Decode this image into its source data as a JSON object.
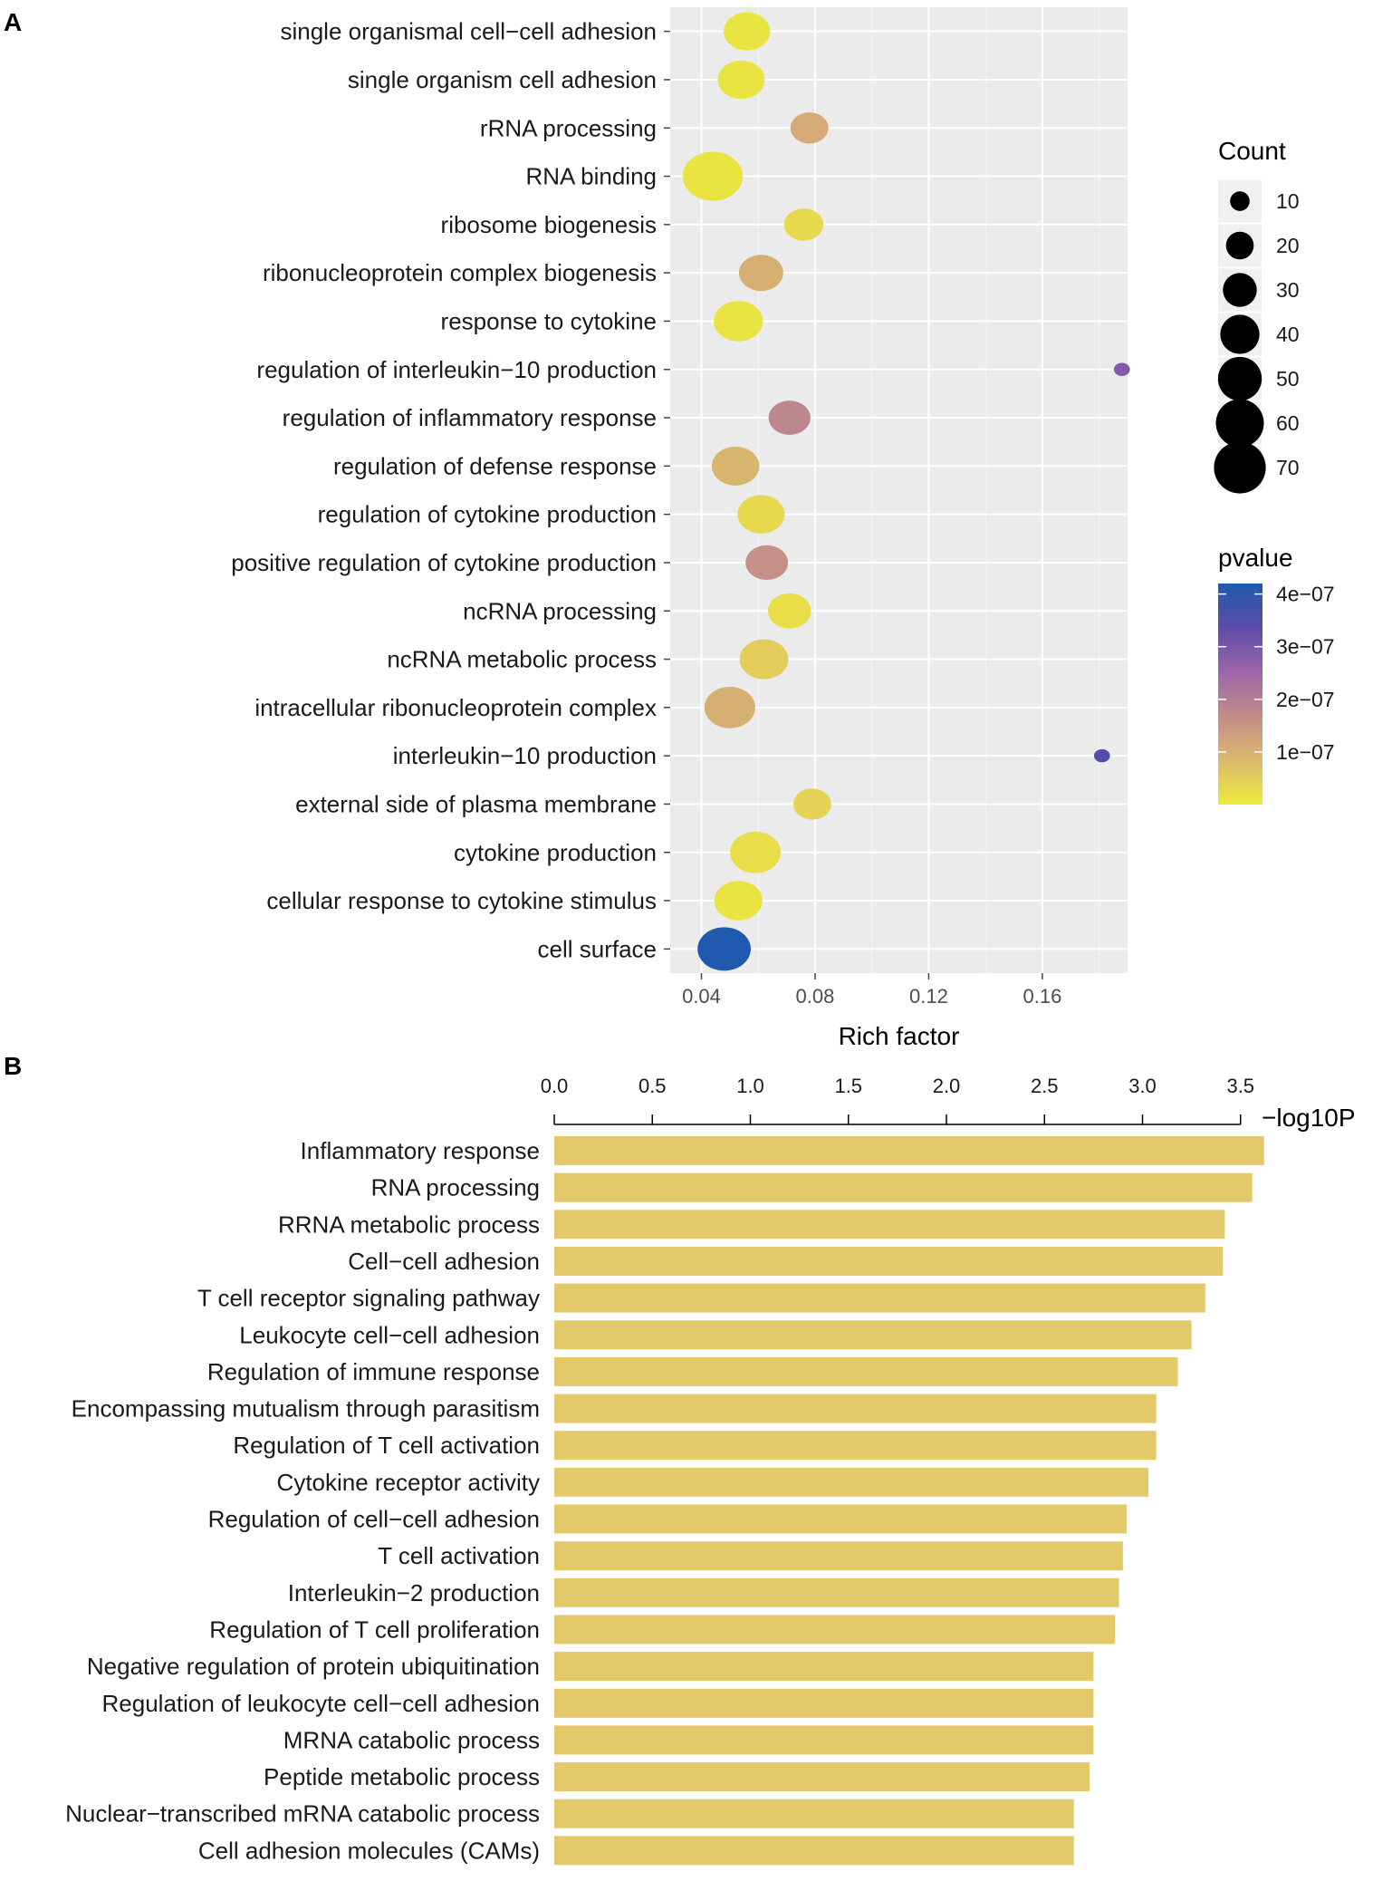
{
  "panels": {
    "a_label": "A",
    "b_label": "B"
  },
  "chart_data": [
    {
      "panel": "A",
      "type": "scatter",
      "subtype": "bubble",
      "title": "",
      "xlabel": "Rich factor",
      "ylabel": "",
      "xlim": [
        0.029,
        0.19
      ],
      "xticks": [
        0.04,
        0.08,
        0.12,
        0.16
      ],
      "xtick_labels": [
        "0.04",
        "0.08",
        "0.12",
        "0.16"
      ],
      "grid": true,
      "categories": [
        "single organismal cell−cell adhesion",
        "single organism cell adhesion",
        "rRNA processing",
        "RNA binding",
        "ribosome biogenesis",
        "ribonucleoprotein complex biogenesis",
        "response to cytokine",
        "regulation of interleukin−10 production",
        "regulation of inflammatory response",
        "regulation of defense response",
        "regulation of cytokine production",
        "positive regulation of cytokine production",
        "ncRNA processing",
        "ncRNA metabolic process",
        "intracellular ribonucleoprotein complex",
        "interleukin−10 production",
        "external side of plasma membrane",
        "cytokine production",
        "cellular response to cytokine stimulus",
        "cell surface"
      ],
      "points": [
        {
          "rich_factor": 0.056,
          "count": 42,
          "pvalue": 1e-08
        },
        {
          "rich_factor": 0.054,
          "count": 43,
          "pvalue": 1e-08
        },
        {
          "rich_factor": 0.078,
          "count": 28,
          "pvalue": 1.1e-07
        },
        {
          "rich_factor": 0.044,
          "count": 70,
          "pvalue": 1e-08
        },
        {
          "rich_factor": 0.076,
          "count": 30,
          "pvalue": 3e-08
        },
        {
          "rich_factor": 0.061,
          "count": 38,
          "pvalue": 1e-07
        },
        {
          "rich_factor": 0.053,
          "count": 47,
          "pvalue": 1e-08
        },
        {
          "rich_factor": 0.188,
          "count": 5,
          "pvalue": 2.9e-07
        },
        {
          "rich_factor": 0.071,
          "count": 34,
          "pvalue": 1.8e-07
        },
        {
          "rich_factor": 0.052,
          "count": 44,
          "pvalue": 9e-08
        },
        {
          "rich_factor": 0.061,
          "count": 43,
          "pvalue": 3e-08
        },
        {
          "rich_factor": 0.063,
          "count": 35,
          "pvalue": 1.6e-07
        },
        {
          "rich_factor": 0.071,
          "count": 36,
          "pvalue": 2e-08
        },
        {
          "rich_factor": 0.062,
          "count": 46,
          "pvalue": 5e-08
        },
        {
          "rich_factor": 0.05,
          "count": 50,
          "pvalue": 1e-07
        },
        {
          "rich_factor": 0.181,
          "count": 5,
          "pvalue": 3.5e-07
        },
        {
          "rich_factor": 0.079,
          "count": 28,
          "pvalue": 4e-08
        },
        {
          "rich_factor": 0.059,
          "count": 50,
          "pvalue": 2e-08
        },
        {
          "rich_factor": 0.053,
          "count": 45,
          "pvalue": 1e-08
        },
        {
          "rich_factor": 0.048,
          "count": 55,
          "pvalue": 4.2e-07
        }
      ],
      "size_legend": {
        "title": "Count",
        "values": [
          10,
          20,
          30,
          40,
          50,
          60,
          70
        ],
        "labels": [
          "10",
          "20",
          "30",
          "40",
          "50",
          "60",
          "70"
        ]
      },
      "color_legend": {
        "title": "pvalue",
        "range": [
          0,
          4.2e-07
        ],
        "ticks": [
          4e-07,
          3e-07,
          2e-07,
          1e-07
        ],
        "tick_labels": [
          "4e−07",
          "3e−07",
          "2e−07",
          "1e−07"
        ],
        "colors": [
          "#ECEA3C",
          "#DBB96E",
          "#C38C8A",
          "#9C67A8",
          "#5C4CA8",
          "#1F5AAE"
        ]
      }
    },
    {
      "panel": "B",
      "type": "bar",
      "orientation": "horizontal",
      "title": "",
      "xlabel": "−log10P",
      "ylabel": "",
      "xlim": [
        0,
        3.6
      ],
      "xticks": [
        0,
        0.5,
        1,
        1.5,
        2,
        2.5,
        3,
        3.5
      ],
      "xtick_labels": [
        "0.0",
        "0.5",
        "1.0",
        "1.5",
        "2.0",
        "2.5",
        "3.0",
        "3.5"
      ],
      "axis_position": "top",
      "bar_color": "#E3C96A",
      "categories": [
        "Inflammatory response",
        "RNA processing",
        "RRNA metabolic process",
        "Cell−cell adhesion",
        "T cell receptor signaling pathway",
        "Leukocyte cell−cell adhesion",
        "Regulation of immune response",
        "Encompassing mutualism through parasitism",
        "Regulation of T cell activation",
        "Cytokine receptor activity",
        "Regulation of cell−cell adhesion",
        "T cell activation",
        "Interleukin−2 production",
        "Regulation of T cell proliferation",
        "Negative regulation of protein ubiquitination",
        "Regulation of leukocyte cell−cell adhesion",
        "MRNA catabolic process",
        "Peptide metabolic process",
        "Nuclear−transcribed mRNA catabolic process",
        "Cell adhesion molecules (CAMs)"
      ],
      "values": [
        3.62,
        3.56,
        3.42,
        3.41,
        3.32,
        3.25,
        3.18,
        3.07,
        3.07,
        3.03,
        2.92,
        2.9,
        2.88,
        2.86,
        2.75,
        2.75,
        2.75,
        2.73,
        2.65,
        2.65
      ]
    }
  ]
}
